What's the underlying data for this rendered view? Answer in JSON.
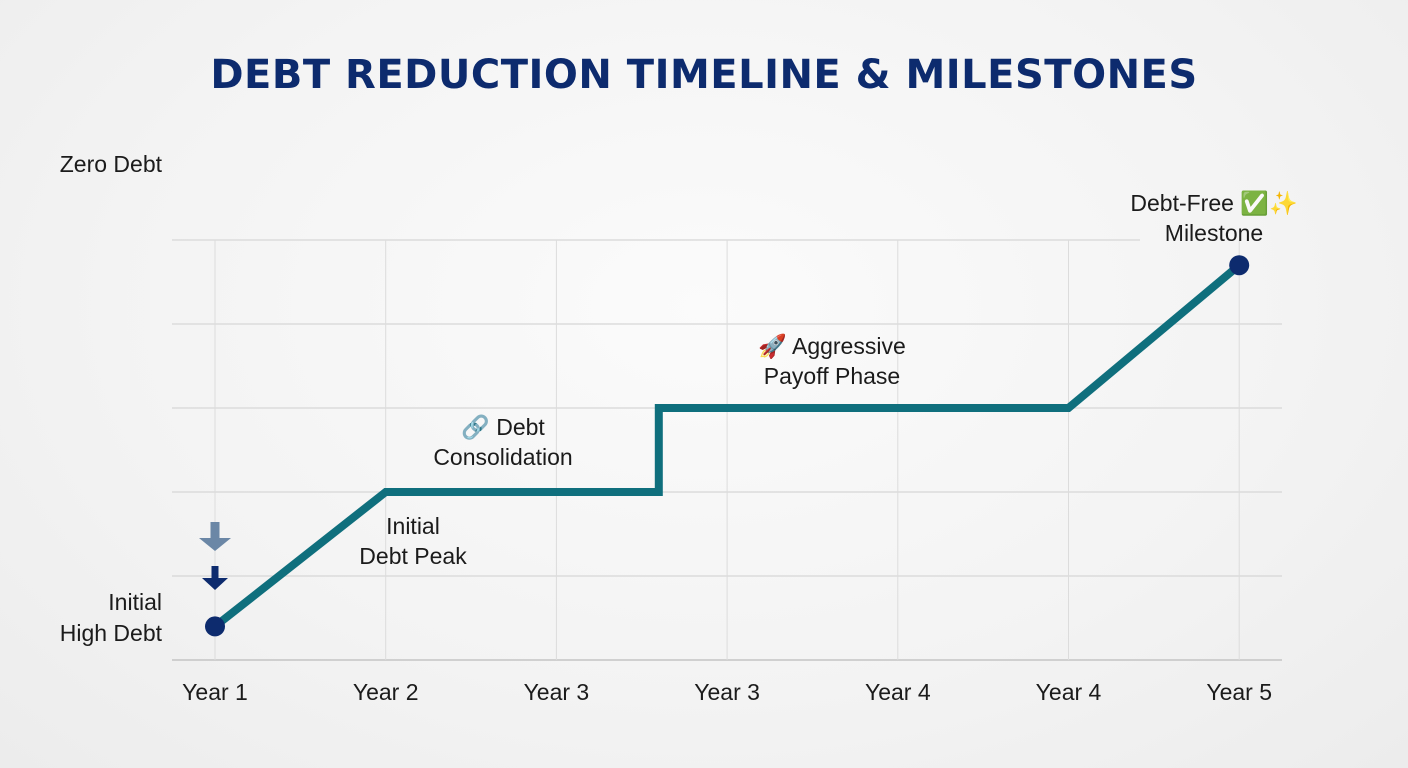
{
  "chart_data": {
    "type": "line",
    "title": "DEBT REDUCTION TIMELINE & MILESTONES",
    "ylabel_top": "Zero Debt",
    "ylabel_bottom": [
      "Initial",
      "High Debt"
    ],
    "categories": [
      "Year 1",
      "Year 2",
      "Year 3",
      "Year 3",
      "Year 4",
      "Year 4",
      "Year 5"
    ],
    "ylim": [
      0,
      5
    ],
    "grid": true,
    "series": [
      {
        "points": [
          {
            "x": 0,
            "y": 0.4
          },
          {
            "x": 1,
            "y": 2.0
          },
          {
            "x": 2.6,
            "y": 2.0
          },
          {
            "x": 2.6,
            "y": 3.0
          },
          {
            "x": 5,
            "y": 3.0
          },
          {
            "x": 6,
            "y": 4.7
          }
        ],
        "color": "#0f6f7d"
      }
    ],
    "markers": [
      {
        "x": 0,
        "y": 0.4,
        "color": "#0d2b6e"
      },
      {
        "x": 6,
        "y": 4.7,
        "color": "#0d2b6e"
      }
    ],
    "annotations": [
      {
        "icon": "",
        "lines": [
          "Initial",
          "Debt Peak"
        ]
      },
      {
        "icon": "🔗",
        "lines": [
          "Debt",
          "Consolidation"
        ]
      },
      {
        "icon": "🚀",
        "lines": [
          "Aggressive",
          "Payoff Phase"
        ]
      },
      {
        "icon": "✅✨",
        "lines": [
          "Debt-Free",
          "Milestone"
        ]
      }
    ],
    "line_color": "#0f6f7d",
    "arrow_colors": [
      "#6b87a6",
      "#0d2b6e"
    ]
  }
}
